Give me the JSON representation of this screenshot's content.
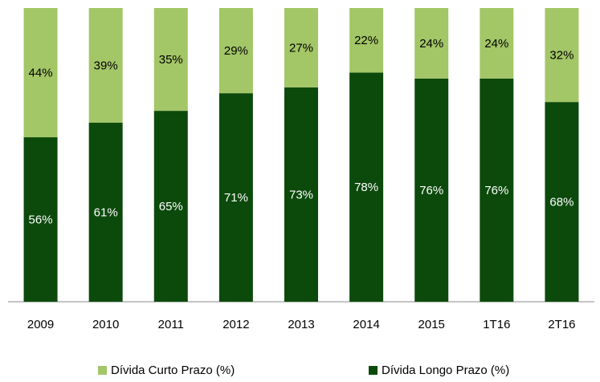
{
  "chart_data": {
    "type": "stacked_bar",
    "categories": [
      "2009",
      "2010",
      "2011",
      "2012",
      "2013",
      "2014",
      "2015",
      "1T16",
      "2T16"
    ],
    "series": [
      {
        "name": "Dívida Curto Prazo (%)",
        "color": "#a3c667",
        "values": [
          44,
          39,
          35,
          29,
          27,
          22,
          24,
          24,
          32
        ],
        "value_labels": [
          "44%",
          "39%",
          "35%",
          "29%",
          "27%",
          "22%",
          "24%",
          "24%",
          "32%"
        ]
      },
      {
        "name": "Dívida Longo Prazo (%)",
        "color": "#0c4a0c",
        "values": [
          56,
          61,
          65,
          71,
          73,
          78,
          76,
          76,
          68
        ],
        "value_labels": [
          "56%",
          "61%",
          "65%",
          "71%",
          "73%",
          "78%",
          "76%",
          "76%",
          "68%"
        ]
      }
    ],
    "ylim": [
      0,
      100
    ],
    "legend": "bottom"
  }
}
